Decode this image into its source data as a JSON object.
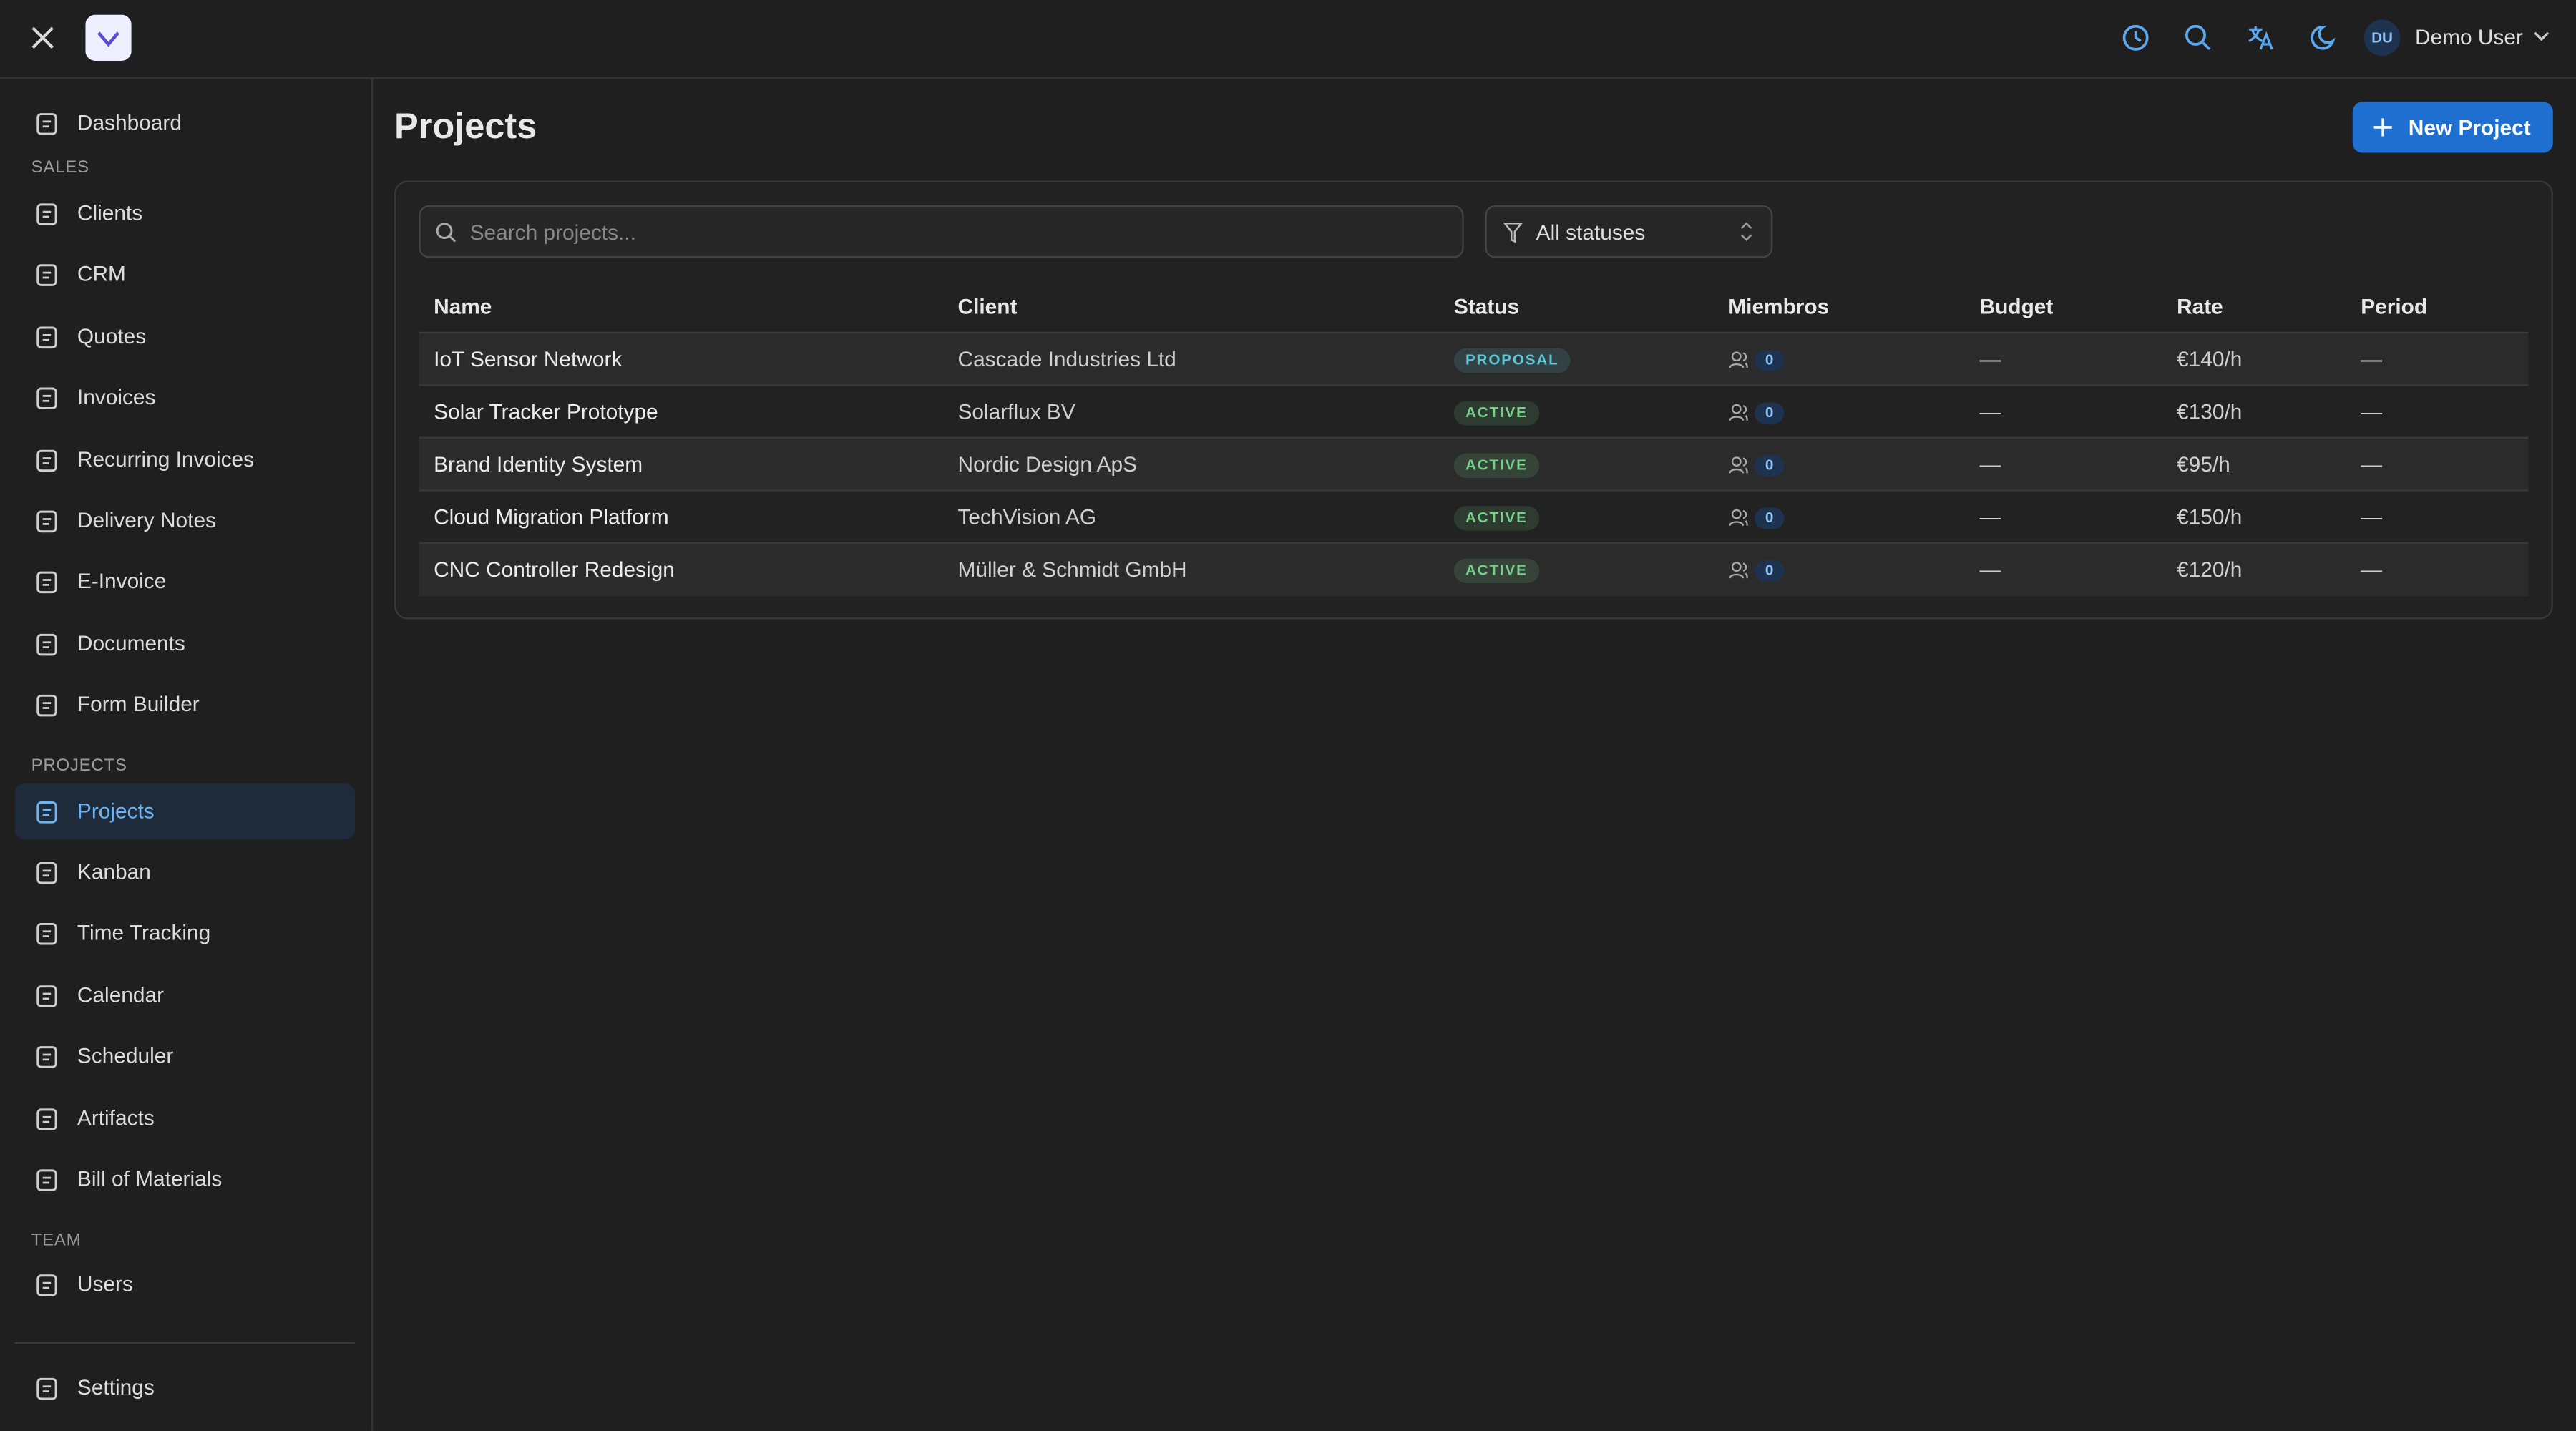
{
  "header": {
    "user_initials": "DU",
    "user_name": "Demo User"
  },
  "sidebar": {
    "top": [
      "Dashboard"
    ],
    "sections": [
      {
        "label": "SALES",
        "items": [
          "Clients",
          "CRM",
          "Quotes",
          "Invoices",
          "Recurring Invoices",
          "Delivery Notes",
          "E-Invoice",
          "Documents",
          "Form Builder"
        ]
      },
      {
        "label": "PROJECTS",
        "items": [
          "Projects",
          "Kanban",
          "Time Tracking",
          "Calendar",
          "Scheduler",
          "Artifacts",
          "Bill of Materials"
        ]
      },
      {
        "label": "TEAM",
        "items": [
          "Users"
        ]
      }
    ],
    "active": "Projects",
    "footer": "Settings"
  },
  "page": {
    "title": "Projects",
    "new_button": "New Project",
    "search_placeholder": "Search projects...",
    "status_filter": "All statuses"
  },
  "table": {
    "columns": [
      "Name",
      "Client",
      "Status",
      "Miembros",
      "Budget",
      "Rate",
      "Period"
    ],
    "rows": [
      {
        "name": "IoT Sensor Network",
        "client": "Cascade Industries Ltd",
        "status": "PROPOSAL",
        "status_color": "#5fc6d6",
        "members": 0,
        "budget": "—",
        "rate": "€140/h",
        "period": "—"
      },
      {
        "name": "Solar Tracker Prototype",
        "client": "Solarflux BV",
        "status": "ACTIVE",
        "status_color": "#77d08a",
        "members": 0,
        "budget": "—",
        "rate": "€130/h",
        "period": "—"
      },
      {
        "name": "Brand Identity System",
        "client": "Nordic Design ApS",
        "status": "ACTIVE",
        "status_color": "#77d08a",
        "members": 0,
        "budget": "—",
        "rate": "€95/h",
        "period": "—"
      },
      {
        "name": "Cloud Migration Platform",
        "client": "TechVision AG",
        "status": "ACTIVE",
        "status_color": "#77d08a",
        "members": 0,
        "budget": "—",
        "rate": "€150/h",
        "period": "—"
      },
      {
        "name": "CNC Controller Redesign",
        "client": "Müller & Schmidt GmbH",
        "status": "ACTIVE",
        "status_color": "#77d08a",
        "members": 0,
        "budget": "—",
        "rate": "€120/h",
        "period": "—"
      }
    ]
  }
}
